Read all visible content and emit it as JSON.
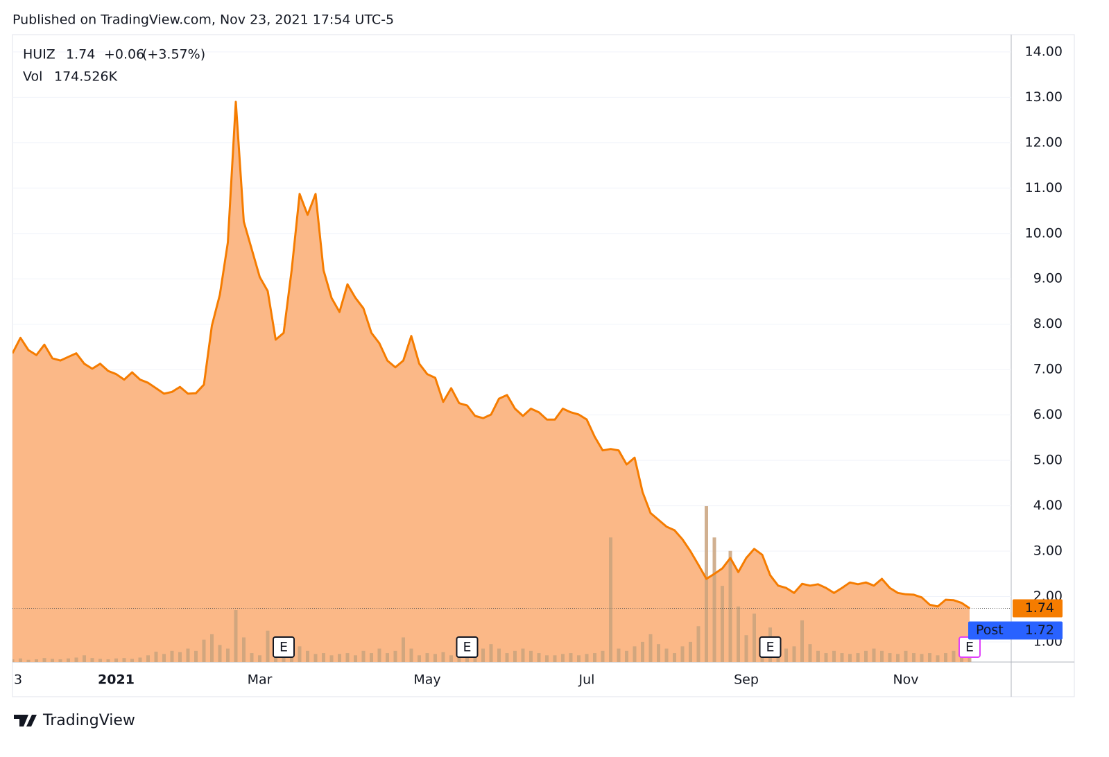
{
  "header": {
    "published": "Published on TradingView.com, Nov 23, 2021 17:54 UTC-5"
  },
  "footer": {
    "brand": "TradingView"
  },
  "chart_data": {
    "type": "area",
    "last": 1.74,
    "change": {
      "value": 0.06,
      "label": "+0.06"
    },
    "change_pct": {
      "value": 3.57,
      "label": "(+3.57%)"
    },
    "volume_last": {
      "value": 174526,
      "label": "174.526K"
    },
    "post": {
      "name": "Post",
      "value": 1.72,
      "color": "#2962ff"
    },
    "categories": [
      "3",
      null,
      null,
      null,
      null,
      null,
      null,
      null,
      null,
      null,
      null,
      null,
      null,
      "2021",
      null,
      null,
      null,
      null,
      null,
      null,
      null,
      null,
      null,
      null,
      null,
      null,
      null,
      null,
      null,
      null,
      null,
      "Mar",
      null,
      null,
      null,
      null,
      null,
      null,
      null,
      null,
      null,
      null,
      null,
      null,
      null,
      null,
      null,
      null,
      null,
      null,
      null,
      null,
      "May",
      null,
      null,
      null,
      null,
      null,
      null,
      null,
      null,
      null,
      null,
      null,
      null,
      null,
      null,
      null,
      null,
      null,
      null,
      null,
      "Jul",
      null,
      null,
      null,
      null,
      null,
      null,
      null,
      null,
      null,
      null,
      null,
      null,
      null,
      null,
      null,
      null,
      null,
      null,
      null,
      "Sep",
      null,
      null,
      null,
      null,
      null,
      null,
      null,
      null,
      null,
      null,
      null,
      null,
      null,
      null,
      null,
      null,
      null,
      null,
      null,
      "Nov",
      null,
      null,
      null,
      null,
      null,
      null,
      null,
      null
    ],
    "series": [
      {
        "name": "HUIZ",
        "color": "#f57c00",
        "fill": "#fbb887",
        "values": [
          7.36,
          7.7,
          7.43,
          7.32,
          7.55,
          7.25,
          7.2,
          7.28,
          7.36,
          7.13,
          7.02,
          7.13,
          6.97,
          6.9,
          6.78,
          6.94,
          6.78,
          6.71,
          6.59,
          6.47,
          6.51,
          6.62,
          6.47,
          6.48,
          6.67,
          7.97,
          8.65,
          9.8,
          12.9,
          10.26,
          9.65,
          9.04,
          8.73,
          7.66,
          7.81,
          9.19,
          10.87,
          10.41,
          10.87,
          9.19,
          8.58,
          8.27,
          8.88,
          8.58,
          8.35,
          7.81,
          7.58,
          7.2,
          7.05,
          7.2,
          7.74,
          7.13,
          6.9,
          6.82,
          6.29,
          6.59,
          6.26,
          6.21,
          5.98,
          5.93,
          6.01,
          6.36,
          6.44,
          6.14,
          5.98,
          6.14,
          6.06,
          5.9,
          5.9,
          6.14,
          6.06,
          6.01,
          5.9,
          5.52,
          5.22,
          5.25,
          5.22,
          4.91,
          5.06,
          4.3,
          3.84,
          3.69,
          3.54,
          3.46,
          3.26,
          3.0,
          2.7,
          2.39,
          2.5,
          2.62,
          2.85,
          2.54,
          2.85,
          3.05,
          2.92,
          2.47,
          2.24,
          2.19,
          2.08,
          2.28,
          2.24,
          2.27,
          2.19,
          2.08,
          2.19,
          2.31,
          2.27,
          2.31,
          2.24,
          2.39,
          2.19,
          2.08,
          2.05,
          2.04,
          1.98,
          1.82,
          1.78,
          1.93,
          1.92,
          1.86,
          1.74
        ]
      },
      {
        "name": "Vol",
        "axis": "y2",
        "color": "#c9a27c",
        "label_color": "#26a69a",
        "values": [
          60000,
          80000,
          50000,
          60000,
          90000,
          70000,
          60000,
          80000,
          100000,
          150000,
          90000,
          70000,
          60000,
          80000,
          90000,
          70000,
          100000,
          150000,
          230000,
          180000,
          250000,
          220000,
          300000,
          250000,
          500000,
          620000,
          380000,
          300000,
          1160000,
          550000,
          200000,
          150000,
          700000,
          250000,
          200000,
          300000,
          350000,
          250000,
          180000,
          200000,
          150000,
          180000,
          200000,
          150000,
          250000,
          200000,
          300000,
          200000,
          250000,
          550000,
          300000,
          150000,
          200000,
          180000,
          220000,
          150000,
          200000,
          250000,
          180000,
          300000,
          400000,
          300000,
          200000,
          250000,
          300000,
          250000,
          200000,
          150000,
          150000,
          180000,
          200000,
          150000,
          180000,
          200000,
          250000,
          2780000,
          300000,
          250000,
          350000,
          450000,
          620000,
          400000,
          300000,
          200000,
          350000,
          450000,
          800000,
          3480000,
          2780000,
          1700000,
          2480000,
          1240000,
          600000,
          1080000,
          500000,
          770000,
          400000,
          300000,
          350000,
          930000,
          400000,
          250000,
          200000,
          250000,
          200000,
          180000,
          200000,
          250000,
          300000,
          250000,
          200000,
          180000,
          250000,
          200000,
          180000,
          200000,
          150000,
          200000,
          250000,
          390000,
          174526
        ]
      }
    ],
    "ylim": [
      0.557,
      14.38
    ],
    "yticks": [
      {
        "value": 1,
        "label": "1.00"
      },
      {
        "value": 2,
        "label": "2.00"
      },
      {
        "value": 3,
        "label": "3.00"
      },
      {
        "value": 4,
        "label": "4.00"
      },
      {
        "value": 5,
        "label": "5.00"
      },
      {
        "value": 6,
        "label": "6.00"
      },
      {
        "value": 7,
        "label": "7.00"
      },
      {
        "value": 8,
        "label": "8.00"
      },
      {
        "value": 9,
        "label": "9.00"
      },
      {
        "value": 10,
        "label": "10.00"
      },
      {
        "value": 11,
        "label": "11.00"
      },
      {
        "value": 12,
        "label": "12.00"
      },
      {
        "value": 13,
        "label": "13.00"
      },
      {
        "value": 14,
        "label": "14.00"
      }
    ],
    "y2lim": [
      0,
      14000000
    ],
    "grid": true,
    "markers": [
      {
        "text": "E",
        "index": 34,
        "color": "#131722"
      },
      {
        "text": "E",
        "index": 57,
        "color": "#131722"
      },
      {
        "text": "E",
        "index": 95,
        "color": "#131722"
      },
      {
        "text": "E",
        "index": 120,
        "color": "#e040fb"
      }
    ]
  }
}
